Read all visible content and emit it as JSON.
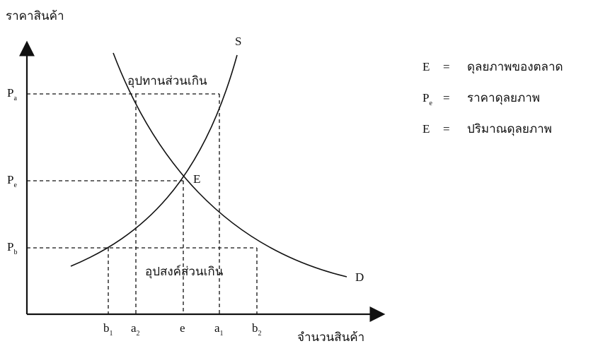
{
  "axes": {
    "y_label": "ราคาสินค้า",
    "x_label": "จำนวนสินค้า"
  },
  "curves": {
    "supply": "S",
    "demand": "D",
    "equilibrium": "E"
  },
  "regions": {
    "excess_supply": "อุปทานส่วนเกิน",
    "excess_demand": "อุปสงค์ส่วนเกิน"
  },
  "y_ticks": [
    {
      "main": "P",
      "sub": "a"
    },
    {
      "main": "P",
      "sub": "e"
    },
    {
      "main": "P",
      "sub": "b"
    }
  ],
  "x_ticks": [
    {
      "main": "b",
      "sub": "1"
    },
    {
      "main": "a",
      "sub": "2"
    },
    {
      "main": "e"
    },
    {
      "main": "a",
      "sub": "1"
    },
    {
      "main": "b",
      "sub": "2"
    }
  ],
  "legend": [
    {
      "symbol": {
        "main": "E"
      },
      "equals": "=",
      "meaning": "ดุลยภาพของตลาด"
    },
    {
      "symbol": {
        "main": "P",
        "sub": "e"
      },
      "equals": "=",
      "meaning": "ราคาดุลยภาพ"
    },
    {
      "symbol": {
        "main": "E"
      },
      "equals": "=",
      "meaning": "ปริมาณดุลยภาพ"
    }
  ]
}
